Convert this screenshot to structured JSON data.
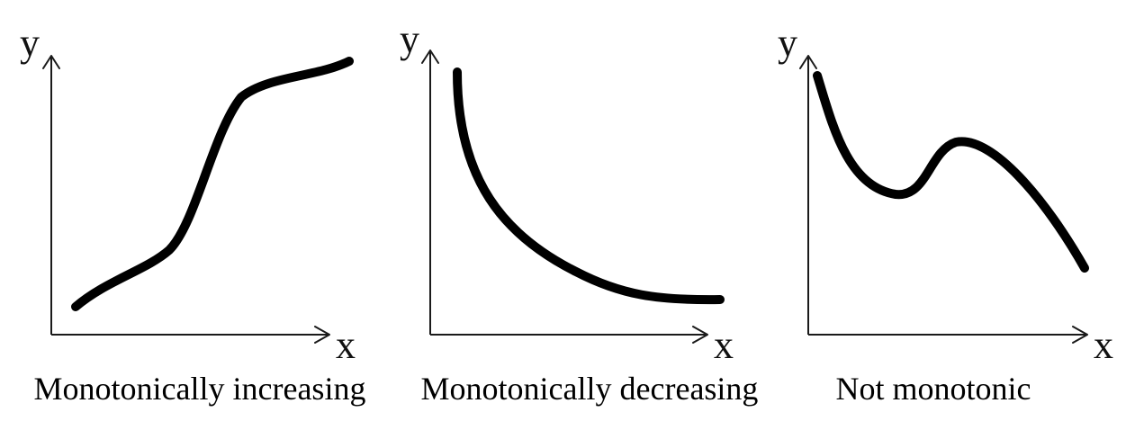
{
  "panels": [
    {
      "id": "increasing",
      "y_label": "y",
      "x_label": "x",
      "caption": "Monotonically increasing"
    },
    {
      "id": "decreasing",
      "y_label": "y",
      "x_label": "x",
      "caption": "Monotonically decreasing"
    },
    {
      "id": "not-monotonic",
      "y_label": "y",
      "x_label": "x",
      "caption": "Not monotonic"
    }
  ],
  "colors": {
    "curve": "#000000",
    "axis": "#1a1a1a",
    "background": "#ffffff"
  }
}
